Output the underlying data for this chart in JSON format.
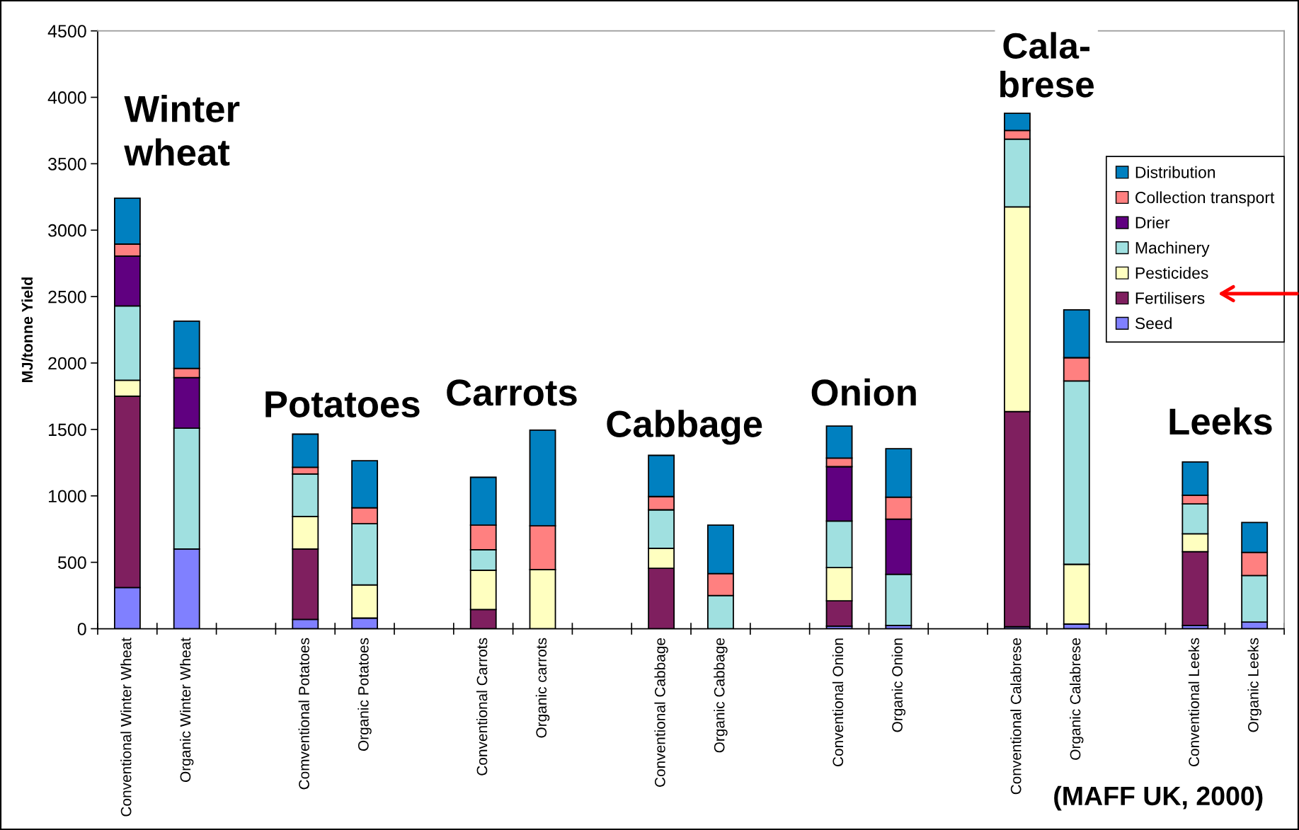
{
  "chart_data": {
    "type": "bar",
    "stacked": true,
    "ylabel": "MJ/tonne Yield",
    "ylim": [
      0,
      4500
    ],
    "yticks": [
      0,
      500,
      1000,
      1500,
      2000,
      2500,
      3000,
      3500,
      4000,
      4500
    ],
    "legend": "top right",
    "categories": [
      "Conventional Winter Wheat",
      "Organic Winter Wheat",
      null,
      "Comventional Potatoes",
      "Organic Potatoes",
      null,
      "Conventional Carrots",
      "Organic carrots",
      null,
      "Conventional Cabbage",
      "Organic Cabbage",
      null,
      "Conventional Onion",
      "Organic Onion",
      null,
      "Conventional Calabrese",
      "Organic Calabrese",
      null,
      "Conventional Leeks",
      "Organic Leeks"
    ],
    "series": [
      {
        "name": "Seed",
        "color": "#8080ff",
        "values": [
          310,
          600,
          null,
          70,
          80,
          null,
          null,
          null,
          null,
          null,
          null,
          null,
          20,
          25,
          null,
          15,
          35,
          null,
          25,
          50
        ]
      },
      {
        "name": "Fertilisers",
        "color": "#7f1f5f",
        "values": [
          1440,
          null,
          null,
          530,
          null,
          null,
          145,
          null,
          null,
          455,
          null,
          null,
          190,
          null,
          null,
          1620,
          null,
          null,
          555,
          null
        ]
      },
      {
        "name": "Pesticides",
        "color": "#ffffc0",
        "values": [
          120,
          null,
          null,
          245,
          250,
          null,
          295,
          445,
          null,
          150,
          null,
          null,
          250,
          null,
          null,
          1540,
          450,
          null,
          135,
          null
        ]
      },
      {
        "name": "Machinery",
        "color": "#a0e0e0",
        "values": [
          560,
          910,
          null,
          320,
          460,
          null,
          155,
          null,
          null,
          290,
          250,
          null,
          350,
          385,
          null,
          510,
          1380,
          null,
          225,
          350
        ]
      },
      {
        "name": "Drier",
        "color": "#600080",
        "values": [
          375,
          380,
          null,
          null,
          null,
          null,
          null,
          null,
          null,
          null,
          null,
          null,
          410,
          415,
          null,
          null,
          null,
          null,
          null,
          null
        ]
      },
      {
        "name": "Collection transport",
        "color": "#ff8080",
        "values": [
          90,
          70,
          null,
          50,
          120,
          null,
          185,
          330,
          null,
          100,
          165,
          null,
          65,
          165,
          null,
          65,
          175,
          null,
          65,
          175
        ]
      },
      {
        "name": "Distribution",
        "color": "#0080c0",
        "values": [
          345,
          355,
          null,
          250,
          355,
          null,
          360,
          720,
          null,
          310,
          365,
          null,
          240,
          365,
          null,
          130,
          360,
          null,
          250,
          225
        ]
      }
    ],
    "annotations": [
      "Winter\nwheat",
      "Potatoes",
      "Carrots",
      "Cabbage",
      "Onion",
      "Cala-\nbrese",
      "Leeks",
      "(MAFF UK, 2000)"
    ]
  }
}
